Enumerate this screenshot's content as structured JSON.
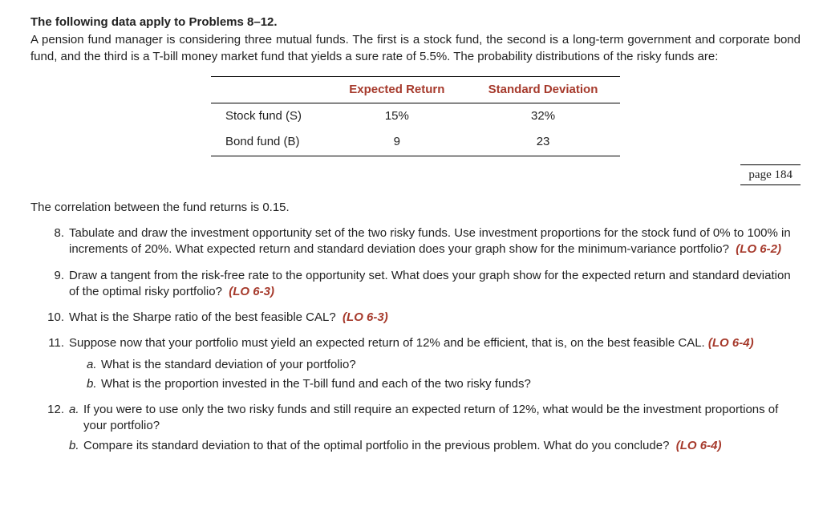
{
  "heading": "The following data apply to Problems 8–12.",
  "intro": "A pension fund manager is considering three mutual funds. The first is a stock fund, the second is a long-term government and corporate bond fund, and the third is a T-bill money market fund that yields a sure rate of 5.5%. The probability distributions of the risky funds are:",
  "table": {
    "colH1": "Expected Return",
    "colH2": "Standard Deviation",
    "r1c0": "Stock fund (S)",
    "r1c1": "15%",
    "r1c2": "32%",
    "r2c0": "Bond fund (B)",
    "r2c1": "9",
    "r2c2": "23"
  },
  "pageLabel": "page 184",
  "corr": "The correlation between the fund returns is 0.15.",
  "p8": {
    "num": "8.",
    "text": "Tabulate and draw the investment opportunity set of the two risky funds. Use investment proportions for the stock fund of 0% to 100% in increments of 20%. What expected return and standard deviation does your graph show for the minimum-variance portfolio?",
    "lo": "(LO 6-2)"
  },
  "p9": {
    "num": "9.",
    "text": "Draw a tangent from the risk-free rate to the opportunity set. What does your graph show for the expected return and standard deviation of the optimal risky portfolio?",
    "lo": "(LO 6-3)"
  },
  "p10": {
    "num": "10.",
    "text": "What is the Sharpe ratio of the best feasible CAL?",
    "lo": "(LO 6-3)"
  },
  "p11": {
    "num": "11.",
    "text": "Suppose now that your portfolio must yield an expected return of 12% and be efficient, that is, on the best feasible CAL.",
    "lo": "(LO 6-4)",
    "a": {
      "let": "a.",
      "text": "What is the standard deviation of your portfolio?"
    },
    "b": {
      "let": "b.",
      "text": "What is the proportion invested in the T-bill fund and each of the two risky funds?"
    }
  },
  "p12": {
    "num": "12.",
    "a": {
      "let": "a.",
      "text": "If you were to use only the two risky funds and still require an expected return of 12%, what would be the investment proportions of your portfolio?"
    },
    "b": {
      "let": "b.",
      "text": "Compare its standard deviation to that of the optimal portfolio in the previous problem. What do you conclude?",
      "lo": "(LO 6-4)"
    }
  }
}
